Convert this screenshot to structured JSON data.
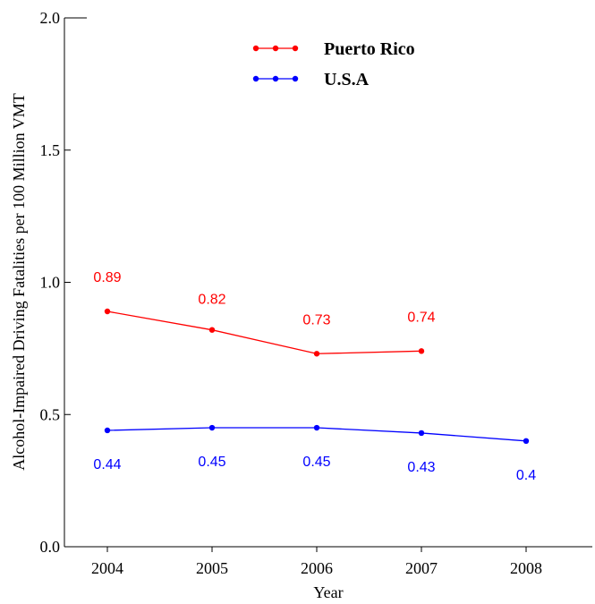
{
  "chart_data": {
    "type": "line",
    "x": [
      2004,
      2005,
      2006,
      2007,
      2008
    ],
    "xlabel": "Year",
    "ylabel": "Alcohol-Impaired Driving Fatalities per 100 Million VMT",
    "ylim": [
      0,
      2.0
    ],
    "yticks": [
      "0.0",
      "0.5",
      "1.0",
      "1.5",
      "2.0"
    ],
    "xticks": [
      "2004",
      "2005",
      "2006",
      "2007",
      "2008"
    ],
    "grid": false,
    "legend_position": "top-center",
    "series": [
      {
        "name": "Puerto Rico",
        "color": "#ff0000",
        "x": [
          2004,
          2005,
          2006,
          2007
        ],
        "values": [
          0.89,
          0.82,
          0.73,
          0.74
        ],
        "labels": [
          "0.89",
          "0.82",
          "0.73",
          "0.74"
        ]
      },
      {
        "name": "U.S.A",
        "color": "#0000ff",
        "x": [
          2004,
          2005,
          2006,
          2007,
          2008
        ],
        "values": [
          0.44,
          0.45,
          0.45,
          0.43,
          0.4
        ],
        "labels": [
          "0.44",
          "0.45",
          "0.45",
          "0.43",
          "0.4"
        ]
      }
    ]
  }
}
